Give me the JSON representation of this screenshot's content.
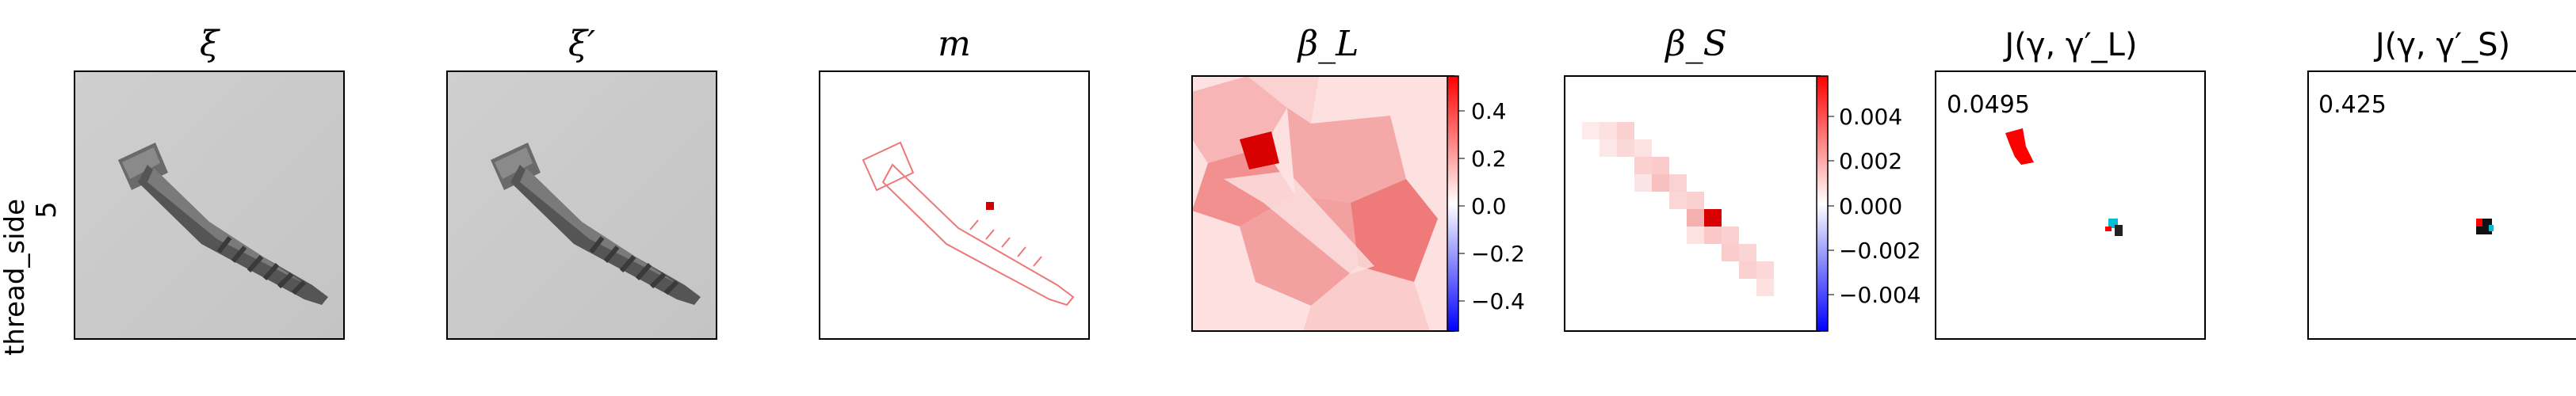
{
  "row_label": {
    "line1": "thread_side",
    "line2": "5"
  },
  "panels": [
    {
      "id": "xi",
      "title": "ξ",
      "kind": "image-gray"
    },
    {
      "id": "xi_prime",
      "title": "ξ′",
      "kind": "image-gray"
    },
    {
      "id": "m",
      "title": "m",
      "kind": "image-mask"
    },
    {
      "id": "beta_L",
      "title": "β_L",
      "kind": "heatmap-superpixel"
    },
    {
      "id": "beta_S",
      "title": "β_S",
      "kind": "heatmap-patch"
    },
    {
      "id": "J_L",
      "title": "J(γ, γ′_L)",
      "kind": "overlay",
      "score": "0.0495"
    },
    {
      "id": "J_S",
      "title": "J(γ, γ′_S)",
      "kind": "overlay",
      "score": "0.425"
    }
  ],
  "colorbar_L": {
    "ticks": [
      "0.4",
      "0.2",
      "0.0",
      "−0.2",
      "−0.4"
    ],
    "colors": {
      "pos": "#ff0000",
      "neg": "#0000ff",
      "mid": "#ffffff"
    }
  },
  "colorbar_S": {
    "ticks": [
      "0.004",
      "0.002",
      "0.000",
      "−0.002",
      "−0.004"
    ],
    "colors": {
      "pos": "#ff0000",
      "neg": "#0000ff",
      "mid": "#ffffff"
    }
  },
  "icons": {
    "screw": "screw-photo",
    "mask": "screw-outline"
  }
}
